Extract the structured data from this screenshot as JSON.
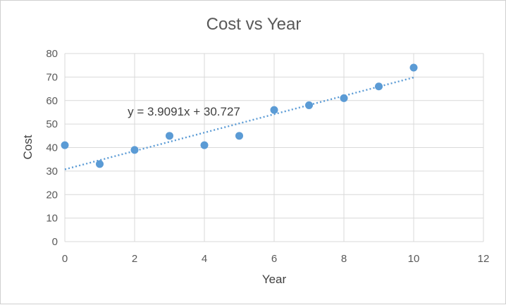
{
  "chart_data": {
    "type": "scatter",
    "title": "Cost vs Year",
    "xlabel": "Year",
    "ylabel": "Cost",
    "xlim": [
      0,
      12
    ],
    "ylim": [
      0,
      80
    ],
    "x_ticks": [
      0,
      2,
      4,
      6,
      8,
      10,
      12
    ],
    "y_ticks": [
      0,
      10,
      20,
      30,
      40,
      50,
      60,
      70,
      80
    ],
    "grid": true,
    "series": [
      {
        "x": [
          0,
          1,
          2,
          3,
          4,
          5,
          6,
          7,
          8,
          9,
          10
        ],
        "y": [
          41,
          33,
          39,
          45,
          41,
          45,
          56,
          58,
          61,
          66,
          74
        ],
        "color": "#5b9bd5"
      }
    ],
    "trendline": {
      "type": "linear",
      "slope": 3.9091,
      "intercept": 30.727,
      "x_range": [
        0,
        10
      ],
      "equation_label": "y = 3.9091x + 30.727",
      "color": "#5b9bd5"
    }
  }
}
